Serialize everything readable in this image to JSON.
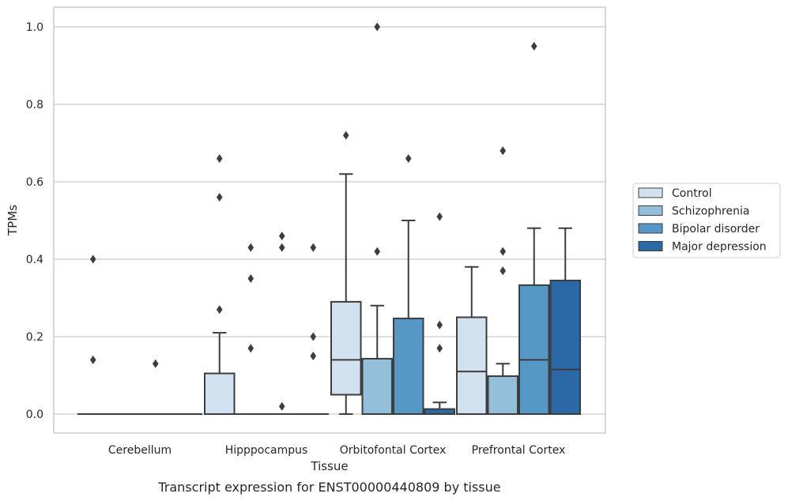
{
  "caption": "Transcript expression for ENST00000440809 by tissue",
  "chart_data": {
    "type": "box",
    "xlabel": "Tissue",
    "ylabel": "TPMs",
    "ylim": [
      -0.05,
      1.05
    ],
    "yticks": [
      "0.0",
      "0.2",
      "0.4",
      "0.6",
      "0.8",
      "1.0"
    ],
    "grid": "horizontal",
    "legend_position": "right, outside plot",
    "categories": [
      "Cerebellum",
      "Hipppocampus",
      "Orbitofontal Cortex",
      "Prefrontal Cortex"
    ],
    "series": [
      {
        "name": "Control",
        "color": "#d1e1f0",
        "boxes": [
          {
            "q1": 0.0,
            "median": 0.0,
            "q3": 0.0,
            "whisker_low": 0.0,
            "whisker_high": 0.0,
            "outliers": [
              0.4,
              0.14
            ]
          },
          {
            "q1": 0.0,
            "median": 0.0,
            "q3": 0.105,
            "whisker_low": 0.0,
            "whisker_high": 0.21,
            "outliers": [
              0.66,
              0.56,
              0.27
            ]
          },
          {
            "q1": 0.05,
            "median": 0.14,
            "q3": 0.29,
            "whisker_low": 0.0,
            "whisker_high": 0.62,
            "outliers": [
              0.72
            ]
          },
          {
            "q1": 0.0,
            "median": 0.11,
            "q3": 0.25,
            "whisker_low": 0.0,
            "whisker_high": 0.38,
            "outliers": []
          }
        ]
      },
      {
        "name": "Schizophrenia",
        "color": "#94bfdb",
        "boxes": [
          {
            "q1": 0.0,
            "median": 0.0,
            "q3": 0.0,
            "whisker_low": 0.0,
            "whisker_high": 0.0,
            "outliers": []
          },
          {
            "q1": 0.0,
            "median": 0.0,
            "q3": 0.0,
            "whisker_low": 0.0,
            "whisker_high": 0.0,
            "outliers": [
              0.43,
              0.35,
              0.17
            ]
          },
          {
            "q1": 0.0,
            "median": 0.0,
            "q3": 0.143,
            "whisker_low": 0.0,
            "whisker_high": 0.28,
            "outliers": [
              1.0,
              0.42
            ]
          },
          {
            "q1": 0.0,
            "median": 0.0,
            "q3": 0.098,
            "whisker_low": 0.0,
            "whisker_high": 0.13,
            "outliers": [
              0.68,
              0.42,
              0.37
            ]
          }
        ]
      },
      {
        "name": "Bipolar disorder",
        "color": "#5597c5",
        "boxes": [
          {
            "q1": 0.0,
            "median": 0.0,
            "q3": 0.0,
            "whisker_low": 0.0,
            "whisker_high": 0.0,
            "outliers": [
              0.13
            ]
          },
          {
            "q1": 0.0,
            "median": 0.0,
            "q3": 0.0,
            "whisker_low": 0.0,
            "whisker_high": 0.0,
            "outliers": [
              0.46,
              0.43,
              0.02
            ]
          },
          {
            "q1": 0.0,
            "median": 0.0,
            "q3": 0.247,
            "whisker_low": 0.0,
            "whisker_high": 0.5,
            "outliers": [
              0.66
            ]
          },
          {
            "q1": 0.0,
            "median": 0.14,
            "q3": 0.333,
            "whisker_low": 0.0,
            "whisker_high": 0.48,
            "outliers": [
              0.95
            ]
          }
        ]
      },
      {
        "name": "Major depression",
        "color": "#2a68a6",
        "boxes": [
          {
            "q1": 0.0,
            "median": 0.0,
            "q3": 0.0,
            "whisker_low": 0.0,
            "whisker_high": 0.0,
            "outliers": []
          },
          {
            "q1": 0.0,
            "median": 0.0,
            "q3": 0.0,
            "whisker_low": 0.0,
            "whisker_high": 0.0,
            "outliers": [
              0.43,
              0.2,
              0.15
            ]
          },
          {
            "q1": 0.0,
            "median": 0.0,
            "q3": 0.013,
            "whisker_low": 0.0,
            "whisker_high": 0.03,
            "outliers": [
              0.51,
              0.23,
              0.17
            ]
          },
          {
            "q1": 0.0,
            "median": 0.115,
            "q3": 0.345,
            "whisker_low": 0.0,
            "whisker_high": 0.48,
            "outliers": []
          }
        ]
      }
    ]
  }
}
